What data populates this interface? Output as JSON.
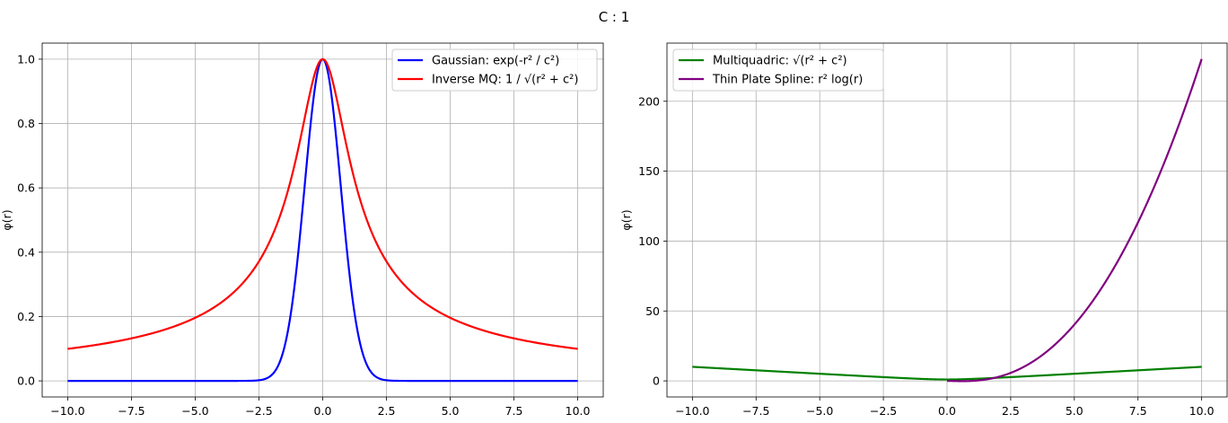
{
  "figure": {
    "suptitle": "C : 1",
    "colors": {
      "blue": "#0000ff",
      "red": "#ff0000",
      "green": "#008000",
      "purple": "#800080"
    }
  },
  "chart_data": [
    {
      "type": "line",
      "ylabel": "φ(r)",
      "xlim": [
        -11,
        11
      ],
      "ylim": [
        -0.05,
        1.05
      ],
      "xticks": [
        -10,
        -7.5,
        -5,
        -2.5,
        0,
        2.5,
        5,
        7.5,
        10
      ],
      "xtick_labels": [
        "−10.0",
        "−7.5",
        "−5.0",
        "−2.5",
        "0.0",
        "2.5",
        "5.0",
        "7.5",
        "10.0"
      ],
      "yticks": [
        0,
        0.2,
        0.4,
        0.6,
        0.8,
        1.0
      ],
      "ytick_labels": [
        "0.0",
        "0.2",
        "0.4",
        "0.6",
        "0.8",
        "1.0"
      ],
      "grid": true,
      "legend_loc": "upper right",
      "c": 1,
      "x_range": [
        -10,
        10
      ],
      "series": [
        {
          "name": "Gaussian: exp(-r² / c²)",
          "func": "gaussian",
          "color": "#0000ff"
        },
        {
          "name": "Inverse MQ: 1 / √(r² + c²)",
          "func": "inverse_mq",
          "color": "#ff0000"
        }
      ]
    },
    {
      "type": "line",
      "ylabel": "φ(r)",
      "xlim": [
        -11,
        11
      ],
      "ylim": [
        -11.5,
        241.6
      ],
      "xticks": [
        -10,
        -7.5,
        -5,
        -2.5,
        0,
        2.5,
        5,
        7.5,
        10
      ],
      "xtick_labels": [
        "−10.0",
        "−7.5",
        "−5.0",
        "−2.5",
        "0.0",
        "2.5",
        "5.0",
        "7.5",
        "10.0"
      ],
      "yticks": [
        0,
        50,
        100,
        150,
        200
      ],
      "ytick_labels": [
        "0",
        "50",
        "100",
        "150",
        "200"
      ],
      "grid": true,
      "legend_loc": "upper left",
      "c": 1,
      "x_range": [
        -10,
        10
      ],
      "series": [
        {
          "name": "Multiquadric: √(r² + c²)",
          "func": "multiquadric",
          "color": "#008000"
        },
        {
          "name": "Thin Plate Spline: r² log(r)",
          "func": "thin_plate",
          "color": "#800080",
          "x_range": [
            0,
            10
          ]
        }
      ]
    }
  ]
}
